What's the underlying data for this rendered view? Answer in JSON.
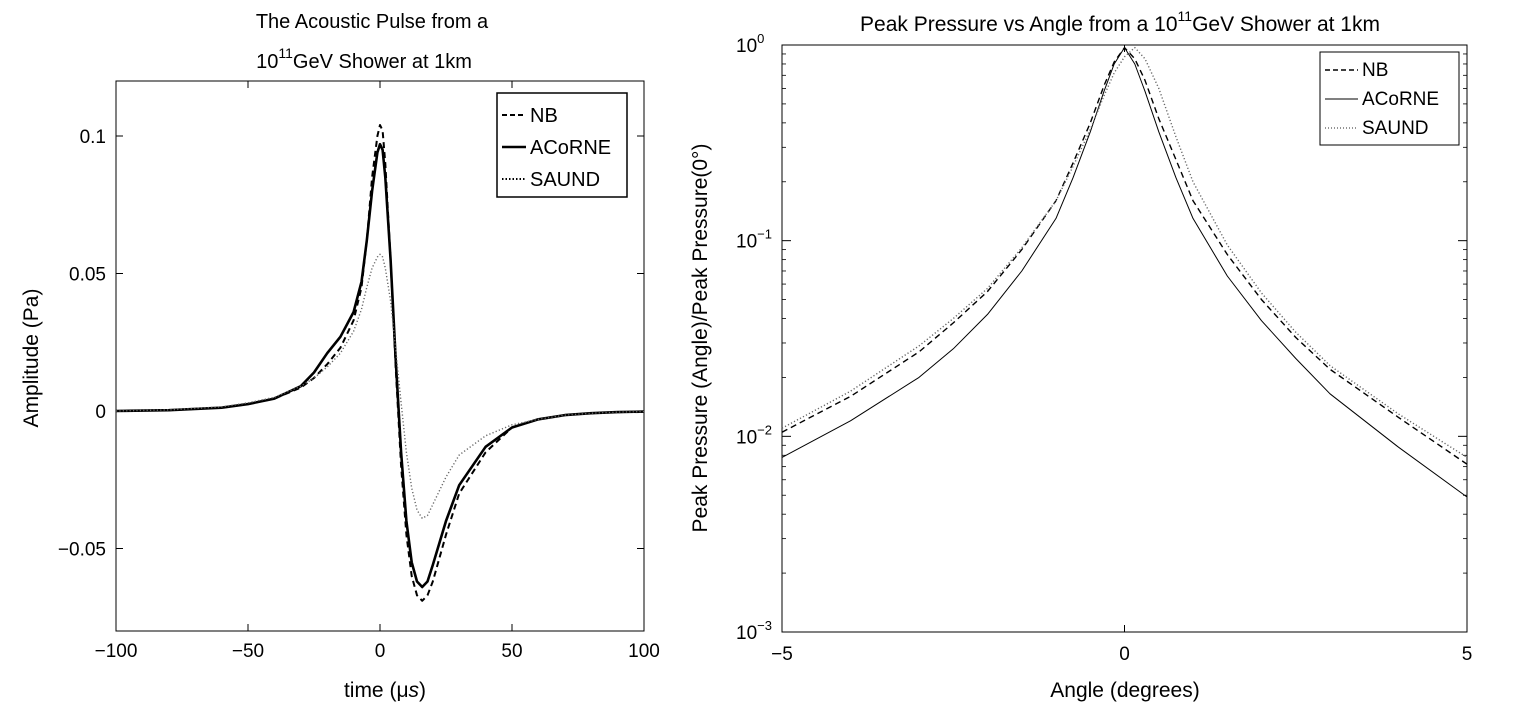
{
  "chart_data": [
    {
      "type": "line",
      "title_line1": "The Acoustic Pulse from a",
      "title_line2_prefix": "10",
      "title_line2_sup": "11",
      "title_line2_suffix": "GeV Shower at 1km",
      "xlabel_prefix": "time (",
      "xlabel_mu": "μ",
      "xlabel_s": "s",
      "xlabel_suffix": ")",
      "ylabel": "Amplitude (Pa)",
      "xlim": [
        -100,
        100
      ],
      "ylim": [
        -0.08,
        0.12
      ],
      "x_ticks": [
        -100,
        -50,
        0,
        50,
        100
      ],
      "x_tick_labels": [
        "−100",
        "−50",
        "0",
        "50",
        "100"
      ],
      "y_ticks": [
        -0.05,
        0,
        0.05,
        0.1
      ],
      "y_tick_labels": [
        "−0.05",
        "0",
        "0.05",
        "0.1"
      ],
      "grid": false,
      "legend": "top-right",
      "series": [
        {
          "name": "NB",
          "style": "dashed",
          "x": [
            -100,
            -80,
            -60,
            -50,
            -40,
            -30,
            -25,
            -20,
            -15,
            -10,
            -7,
            -5,
            -3,
            -1,
            0,
            1,
            2,
            4,
            6,
            8,
            10,
            12,
            14,
            16,
            18,
            20,
            25,
            30,
            40,
            50,
            60,
            70,
            80,
            90,
            100
          ],
          "y": [
            0,
            0.0003,
            0.0012,
            0.0025,
            0.0045,
            0.0085,
            0.012,
            0.017,
            0.023,
            0.033,
            0.045,
            0.062,
            0.085,
            0.1,
            0.104,
            0.102,
            0.09,
            0.055,
            0.015,
            -0.02,
            -0.045,
            -0.06,
            -0.067,
            -0.069,
            -0.067,
            -0.062,
            -0.045,
            -0.03,
            -0.015,
            -0.006,
            -0.003,
            -0.0015,
            -0.0008,
            -0.0004,
            -0.0002
          ]
        },
        {
          "name": "ACoRNE",
          "style": "solid-thick",
          "x": [
            -100,
            -80,
            -60,
            -50,
            -40,
            -30,
            -25,
            -20,
            -15,
            -10,
            -7,
            -5,
            -3,
            -1,
            0,
            1,
            2,
            4,
            6,
            8,
            10,
            12,
            14,
            16,
            18,
            20,
            25,
            30,
            40,
            50,
            60,
            70,
            80,
            90,
            100
          ],
          "y": [
            0,
            0.0003,
            0.0012,
            0.0025,
            0.0045,
            0.009,
            0.014,
            0.021,
            0.027,
            0.036,
            0.047,
            0.062,
            0.08,
            0.094,
            0.097,
            0.095,
            0.085,
            0.055,
            0.018,
            -0.015,
            -0.04,
            -0.055,
            -0.062,
            -0.064,
            -0.062,
            -0.056,
            -0.04,
            -0.027,
            -0.013,
            -0.006,
            -0.003,
            -0.0015,
            -0.0008,
            -0.0004,
            -0.0002
          ]
        },
        {
          "name": "SAUND",
          "style": "dotted",
          "x": [
            -100,
            -80,
            -60,
            -50,
            -40,
            -30,
            -25,
            -20,
            -15,
            -10,
            -7,
            -5,
            -3,
            -1,
            0,
            1,
            2,
            4,
            6,
            8,
            10,
            12,
            14,
            16,
            18,
            20,
            25,
            30,
            40,
            50,
            60,
            70,
            80,
            90,
            100
          ],
          "y": [
            0,
            0.0004,
            0.0015,
            0.003,
            0.005,
            0.009,
            0.012,
            0.016,
            0.021,
            0.029,
            0.037,
            0.045,
            0.052,
            0.056,
            0.057,
            0.056,
            0.052,
            0.04,
            0.022,
            0.003,
            -0.015,
            -0.028,
            -0.036,
            -0.039,
            -0.038,
            -0.034,
            -0.024,
            -0.016,
            -0.009,
            -0.005,
            -0.003,
            -0.0015,
            -0.0008,
            -0.0004,
            -0.0002
          ]
        }
      ]
    },
    {
      "type": "line",
      "title_prefix": "Peak Pressure vs Angle from a 10",
      "title_sup": "11",
      "title_suffix": "GeV Shower at 1km",
      "xlabel": "Angle (degrees)",
      "ylabel": "Peak Pressure (Angle)/Peak Pressure(0°)",
      "xlim": [
        -5,
        5
      ],
      "ylim": [
        0.001,
        1
      ],
      "y_scale": "log",
      "x_ticks": [
        -5,
        0,
        5
      ],
      "x_tick_labels": [
        "−5",
        "0",
        "5"
      ],
      "y_ticks": [
        0.001,
        0.01,
        0.1,
        1
      ],
      "y_tick_exponents": [
        "−3",
        "−2",
        "−1",
        "0"
      ],
      "y_tick_base": "10",
      "grid": false,
      "legend": "top-right",
      "series": [
        {
          "name": "NB",
          "style": "dashed",
          "x": [
            -5,
            -4,
            -3,
            -2.5,
            -2,
            -1.5,
            -1,
            -0.75,
            -0.5,
            -0.3,
            -0.15,
            0,
            0.15,
            0.3,
            0.5,
            0.75,
            1,
            1.5,
            2,
            2.5,
            3,
            4,
            5
          ],
          "y": [
            0.0105,
            0.016,
            0.027,
            0.038,
            0.055,
            0.09,
            0.16,
            0.25,
            0.4,
            0.62,
            0.82,
            0.97,
            0.85,
            0.66,
            0.42,
            0.26,
            0.16,
            0.085,
            0.05,
            0.032,
            0.022,
            0.0125,
            0.0072
          ]
        },
        {
          "name": "ACoRNE",
          "style": "solid",
          "x": [
            -5,
            -4,
            -3,
            -2.5,
            -2,
            -1.5,
            -1,
            -0.75,
            -0.5,
            -0.3,
            -0.15,
            0,
            0.15,
            0.3,
            0.5,
            0.75,
            1,
            1.5,
            2,
            2.5,
            3,
            4,
            5
          ],
          "y": [
            0.0078,
            0.012,
            0.02,
            0.028,
            0.042,
            0.07,
            0.13,
            0.21,
            0.36,
            0.58,
            0.8,
            0.97,
            0.8,
            0.58,
            0.36,
            0.21,
            0.13,
            0.066,
            0.039,
            0.025,
            0.0165,
            0.0088,
            0.0049
          ]
        },
        {
          "name": "SAUND",
          "style": "dotted",
          "x": [
            -5,
            -4,
            -3,
            -2.5,
            -2,
            -1.5,
            -1,
            -0.75,
            -0.5,
            -0.3,
            -0.15,
            0,
            0.15,
            0.3,
            0.5,
            0.75,
            1,
            1.5,
            2,
            2.5,
            3,
            4,
            5
          ],
          "y": [
            0.011,
            0.017,
            0.029,
            0.04,
            0.057,
            0.092,
            0.16,
            0.24,
            0.37,
            0.55,
            0.72,
            0.87,
            0.97,
            0.85,
            0.6,
            0.34,
            0.2,
            0.095,
            0.054,
            0.034,
            0.023,
            0.013,
            0.0078
          ]
        }
      ]
    }
  ]
}
